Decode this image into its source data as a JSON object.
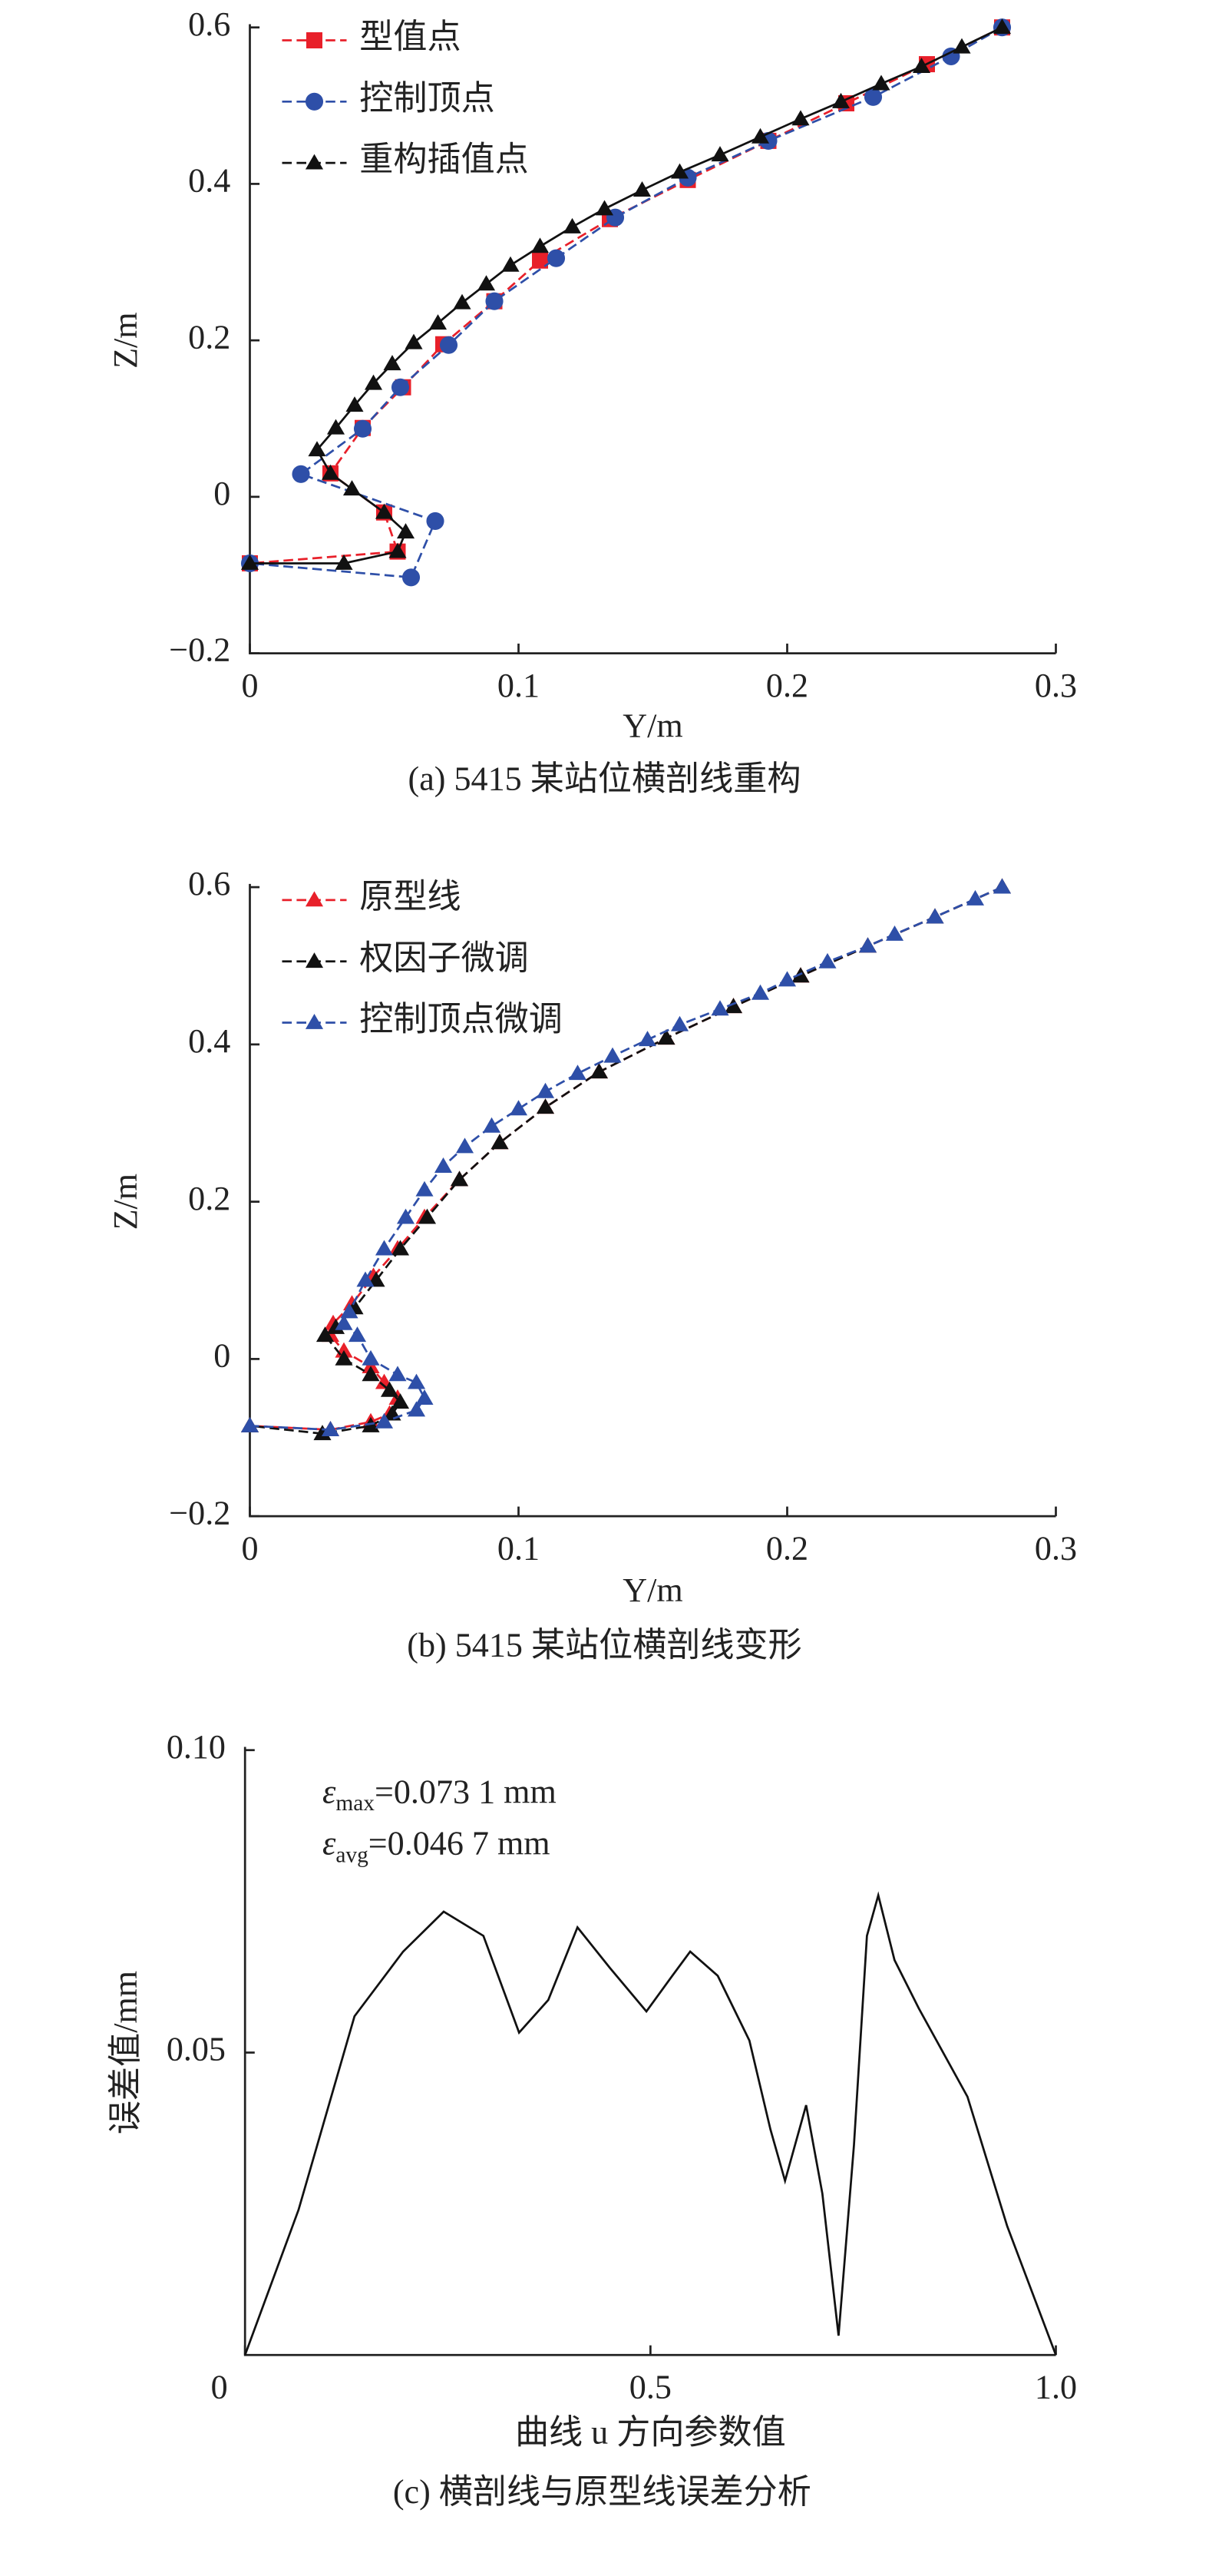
{
  "chart_data": [
    {
      "type": "line",
      "caption": "(a) 5415 某站位横剖线重构",
      "xlabel": "Y/m",
      "ylabel": "Z/m",
      "xlim": [
        0,
        0.3
      ],
      "xticks": [
        0,
        0.1,
        0.2,
        0.3
      ],
      "ylim": [
        -0.2,
        0.6
      ],
      "yticks": [
        {
          "value": -0.2,
          "label": "−0.2"
        },
        0,
        0.2,
        0.4,
        0.6
      ],
      "legend": "upper left",
      "series": [
        {
          "name": "型值点",
          "color": "#e8202a",
          "marker": "square",
          "dash": true,
          "x": [
            0.28,
            0.252,
            0.222,
            0.193,
            0.163,
            0.134,
            0.108,
            0.091,
            0.072,
            0.057,
            0.042,
            0.03,
            0.05,
            0.055,
            0
          ],
          "values": [
            0.6,
            0.553,
            0.503,
            0.455,
            0.405,
            0.355,
            0.302,
            0.25,
            0.195,
            0.14,
            0.088,
            0.03,
            -0.02,
            -0.07,
            -0.085
          ]
        },
        {
          "name": "控制顶点",
          "color": "#2e4fa8",
          "marker": "circle",
          "dash": true,
          "x": [
            0.28,
            0.261,
            0.232,
            0.193,
            0.163,
            0.136,
            0.114,
            0.091,
            0.074,
            0.056,
            0.042,
            0.019,
            0.069,
            0.06,
            0
          ],
          "values": [
            0.6,
            0.563,
            0.511,
            0.455,
            0.408,
            0.357,
            0.305,
            0.25,
            0.194,
            0.14,
            0.087,
            0.029,
            -0.031,
            -0.103,
            -0.085
          ]
        },
        {
          "name": "重构插值点",
          "color": "#111111",
          "marker": "triangle",
          "dash": false,
          "x": [
            0.28,
            0.265,
            0.25,
            0.235,
            0.22,
            0.205,
            0.19,
            0.175,
            0.16,
            0.146,
            0.132,
            0.12,
            0.108,
            0.097,
            0.088,
            0.079,
            0.07,
            0.061,
            0.053,
            0.046,
            0.039,
            0.032,
            0.025,
            0.03,
            0.038,
            0.05,
            0.058,
            0.055,
            0.035,
            0
          ],
          "values": [
            0.6,
            0.575,
            0.55,
            0.528,
            0.505,
            0.483,
            0.46,
            0.437,
            0.415,
            0.392,
            0.368,
            0.345,
            0.32,
            0.296,
            0.272,
            0.248,
            0.222,
            0.197,
            0.17,
            0.145,
            0.117,
            0.088,
            0.06,
            0.03,
            0.01,
            -0.02,
            -0.045,
            -0.07,
            -0.085,
            -0.085
          ]
        }
      ]
    },
    {
      "type": "line",
      "caption": "(b) 5415 某站位横剖线变形",
      "xlabel": "Y/m",
      "ylabel": "Z/m",
      "xlim": [
        0,
        0.3
      ],
      "xticks": [
        0,
        0.1,
        0.2,
        0.3
      ],
      "ylim": [
        -0.2,
        0.6
      ],
      "yticks": [
        {
          "value": -0.2,
          "label": "−0.2"
        },
        0,
        0.2,
        0.4,
        0.6
      ],
      "legend": "upper left",
      "series": [
        {
          "name": "原型线",
          "color": "#e8202a",
          "marker": "triangle",
          "dash": true,
          "x": [
            0.28,
            0.255,
            0.23,
            0.205,
            0.18,
            0.155,
            0.13,
            0.11,
            0.093,
            0.078,
            0.065,
            0.055,
            0.046,
            0.038,
            0.031,
            0.03,
            0.035,
            0.045,
            0.05,
            0.055,
            0.052,
            0.045,
            0.03,
            0
          ],
          "values": [
            0.6,
            0.562,
            0.525,
            0.487,
            0.448,
            0.408,
            0.365,
            0.32,
            0.275,
            0.228,
            0.18,
            0.14,
            0.105,
            0.07,
            0.045,
            0.03,
            0.01,
            -0.01,
            -0.03,
            -0.05,
            -0.07,
            -0.08,
            -0.09,
            -0.085
          ]
        },
        {
          "name": "权因子微调",
          "color": "#111111",
          "marker": "triangle",
          "dash": true,
          "x": [
            0.28,
            0.255,
            0.23,
            0.205,
            0.18,
            0.155,
            0.13,
            0.11,
            0.093,
            0.078,
            0.066,
            0.056,
            0.047,
            0.039,
            0.032,
            0.028,
            0.035,
            0.045,
            0.052,
            0.056,
            0.053,
            0.045,
            0.027,
            0
          ],
          "values": [
            0.6,
            0.562,
            0.525,
            0.487,
            0.448,
            0.408,
            0.365,
            0.32,
            0.275,
            0.228,
            0.18,
            0.14,
            0.1,
            0.065,
            0.04,
            0.03,
            0.0,
            -0.02,
            -0.04,
            -0.055,
            -0.07,
            -0.085,
            -0.095,
            -0.085
          ]
        },
        {
          "name": "控制顶点微调",
          "color": "#2e4fa8",
          "marker": "triangle",
          "dash": true,
          "x": [
            0.28,
            0.27,
            0.255,
            0.24,
            0.23,
            0.215,
            0.2,
            0.19,
            0.175,
            0.16,
            0.148,
            0.135,
            0.122,
            0.11,
            0.1,
            0.09,
            0.08,
            0.072,
            0.065,
            0.058,
            0.05,
            0.043,
            0.037,
            0.035,
            0.04,
            0.045,
            0.055,
            0.062,
            0.065,
            0.062,
            0.05,
            0.03,
            0
          ],
          "values": [
            0.6,
            0.585,
            0.562,
            0.54,
            0.525,
            0.505,
            0.482,
            0.465,
            0.445,
            0.425,
            0.406,
            0.385,
            0.363,
            0.34,
            0.318,
            0.296,
            0.27,
            0.245,
            0.215,
            0.18,
            0.14,
            0.1,
            0.06,
            0.045,
            0.03,
            0.0,
            -0.02,
            -0.03,
            -0.05,
            -0.065,
            -0.08,
            -0.09,
            -0.085
          ]
        }
      ]
    },
    {
      "type": "line",
      "caption": "(c) 横剖线与原型线误差分析",
      "xlabel": "曲线 u 方向参数值",
      "ylabel": "误差值/mm",
      "xlim": [
        0,
        1
      ],
      "xticks": [
        0,
        0.5,
        {
          "value": 1,
          "label": "1.0"
        }
      ],
      "ylim": [
        0,
        0.1
      ],
      "yticks": [
        0.05,
        {
          "value": 0.1,
          "label": "0.10"
        }
      ],
      "annotations": [
        {
          "symbol": "ε",
          "sub": "max",
          "text": "=0.073 1 mm"
        },
        {
          "symbol": "ε",
          "sub": "avg",
          "text": "=0.046 7 mm"
        }
      ],
      "series": [
        {
          "color": "#111111",
          "marker": "none",
          "dash": false,
          "x": [
            0,
            0.066,
            0.135,
            0.195,
            0.245,
            0.294,
            0.338,
            0.374,
            0.41,
            0.45,
            0.495,
            0.527,
            0.549,
            0.583,
            0.622,
            0.648,
            0.666,
            0.692,
            0.712,
            0.732,
            0.751,
            0.767,
            0.781,
            0.801,
            0.831,
            0.891,
            0.94,
            1
          ],
          "values": [
            0,
            0.024,
            0.056,
            0.0667,
            0.0733,
            0.0693,
            0.0533,
            0.0587,
            0.0707,
            0.064,
            0.0568,
            0.0627,
            0.0667,
            0.0627,
            0.052,
            0.0373,
            0.0288,
            0.0413,
            0.0267,
            0.0032,
            0.0347,
            0.0693,
            0.076,
            0.0653,
            0.0573,
            0.0427,
            0.0213,
            0
          ]
        }
      ]
    }
  ]
}
